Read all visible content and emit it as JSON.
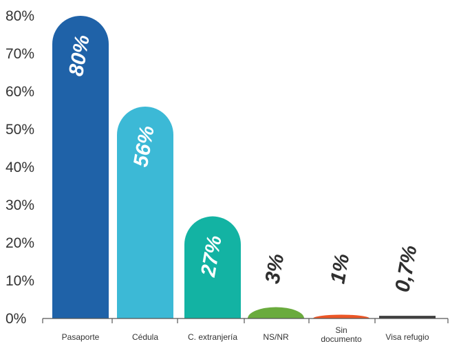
{
  "chart_data": {
    "type": "bar",
    "title": "",
    "xlabel": "",
    "ylabel": "",
    "ylim": [
      0,
      80
    ],
    "yticks": [
      "0%",
      "10%",
      "20%",
      "30%",
      "40%",
      "50%",
      "60%",
      "70%",
      "80%"
    ],
    "grid": false,
    "categories": [
      [
        "Pasaporte"
      ],
      [
        "Cédula"
      ],
      [
        "C. extranjería"
      ],
      [
        "NS/NR"
      ],
      [
        "Sin",
        "documento"
      ],
      [
        "Visa refugio"
      ]
    ],
    "values": [
      80,
      56,
      27,
      3,
      1,
      0.7
    ],
    "data_labels": [
      "80%",
      "56%",
      "27%",
      "3%",
      "1%",
      "0,7%"
    ],
    "colors": [
      "#1f62a8",
      "#3cb9d6",
      "#13b3a3",
      "#6aab3d",
      "#ec5626",
      "#3d3d3d"
    ],
    "label_color_inside": "#ffffff",
    "label_color_outside": "#2f2f2f"
  }
}
